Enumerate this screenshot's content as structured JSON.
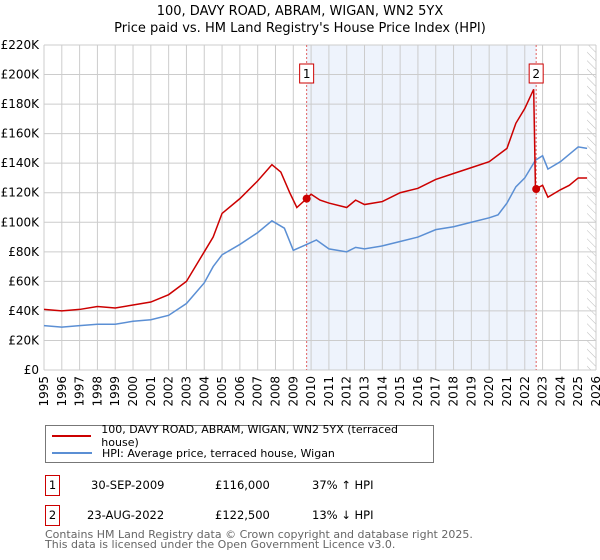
{
  "title": "100, DAVY ROAD, ABRAM, WIGAN, WN2 5YX",
  "subtitle": "Price paid vs. HM Land Registry's House Price Index (HPI)",
  "chart_data": {
    "type": "line",
    "title": "100, DAVY ROAD, ABRAM, WIGAN, WN2 5YX",
    "subtitle": "Price paid vs. HM Land Registry's House Price Index (HPI)",
    "xlim": [
      1995,
      2026
    ],
    "ylim": [
      0,
      220000
    ],
    "x_ticks": [
      "1995",
      "1996",
      "1997",
      "1998",
      "1999",
      "2000",
      "2001",
      "2002",
      "2003",
      "2004",
      "2005",
      "2006",
      "2007",
      "2008",
      "2009",
      "2010",
      "2011",
      "2012",
      "2013",
      "2014",
      "2015",
      "2016",
      "2017",
      "2018",
      "2019",
      "2020",
      "2021",
      "2022",
      "2023",
      "2024",
      "2025",
      "2026"
    ],
    "y_ticks": [
      "£0",
      "£20K",
      "£40K",
      "£60K",
      "£80K",
      "£100K",
      "£120K",
      "£140K",
      "£160K",
      "£180K",
      "£200K",
      "£220K"
    ],
    "grid": true,
    "shaded_range": [
      2009.75,
      2022.65
    ],
    "hatched_from": 2025.5,
    "series": [
      {
        "name": "100, DAVY ROAD, ABRAM, WIGAN, WN2 5YX (terraced house)",
        "color": "#cc0000",
        "x": [
          1995,
          1996,
          1997,
          1998,
          1999,
          2000,
          2001,
          2002,
          2003,
          2004,
          2004.5,
          2005,
          2006,
          2007,
          2007.8,
          2008.3,
          2008.8,
          2009.2,
          2009.75,
          2010,
          2010.5,
          2011,
          2012,
          2012.5,
          2013,
          2014,
          2015,
          2016,
          2017,
          2018,
          2019,
          2020,
          2021,
          2021.5,
          2022,
          2022.5,
          2022.6,
          2023,
          2023.3,
          2024,
          2024.5,
          2025,
          2025.5
        ],
        "y": [
          41000,
          40000,
          41000,
          43000,
          42000,
          44000,
          46000,
          51000,
          60000,
          80000,
          90000,
          106000,
          116000,
          128000,
          139000,
          134000,
          120000,
          110000,
          116000,
          119000,
          115000,
          113000,
          110000,
          115000,
          112000,
          114000,
          120000,
          123000,
          129000,
          133000,
          137000,
          141000,
          150000,
          167000,
          177000,
          190000,
          122500,
          125000,
          117000,
          122000,
          125000,
          130000,
          130000
        ]
      },
      {
        "name": "HPI: Average price, terraced house, Wigan",
        "color": "#5b8fd4",
        "x": [
          1995,
          1996,
          1997,
          1998,
          1999,
          2000,
          2001,
          2002,
          2003,
          2004,
          2004.5,
          2005,
          2006,
          2007,
          2007.8,
          2008.5,
          2009,
          2009.75,
          2010.3,
          2011,
          2012,
          2012.5,
          2013,
          2014,
          2015,
          2016,
          2017,
          2018,
          2019,
          2020,
          2020.5,
          2021,
          2021.5,
          2022,
          2022.6,
          2023,
          2023.3,
          2024,
          2024.5,
          2025,
          2025.5
        ],
        "y": [
          30000,
          29000,
          30000,
          31000,
          31000,
          33000,
          34000,
          37000,
          45000,
          59000,
          70000,
          78000,
          85000,
          93000,
          101000,
          96000,
          81000,
          85000,
          88000,
          82000,
          80000,
          83000,
          82000,
          84000,
          87000,
          90000,
          95000,
          97000,
          100000,
          103000,
          105000,
          113000,
          124000,
          130000,
          142000,
          145000,
          136000,
          141000,
          146000,
          151000,
          150000
        ]
      }
    ],
    "markers": [
      {
        "label": "1",
        "x": 2009.75,
        "y": 116000
      },
      {
        "label": "2",
        "x": 2022.64,
        "y": 122500
      }
    ]
  },
  "legend": [
    {
      "label": "100, DAVY ROAD, ABRAM, WIGAN, WN2 5YX (terraced house)",
      "color": "#cc0000"
    },
    {
      "label": "HPI: Average price, terraced house, Wigan",
      "color": "#5b8fd4"
    }
  ],
  "transactions": [
    {
      "num": "1",
      "date": "30-SEP-2009",
      "price": "£116,000",
      "hpi": "37% ↑ HPI"
    },
    {
      "num": "2",
      "date": "23-AUG-2022",
      "price": "£122,500",
      "hpi": "13% ↓ HPI"
    }
  ],
  "footer": [
    "Contains HM Land Registry data © Crown copyright and database right 2025.",
    "This data is licensed under the Open Government Licence v3.0."
  ]
}
